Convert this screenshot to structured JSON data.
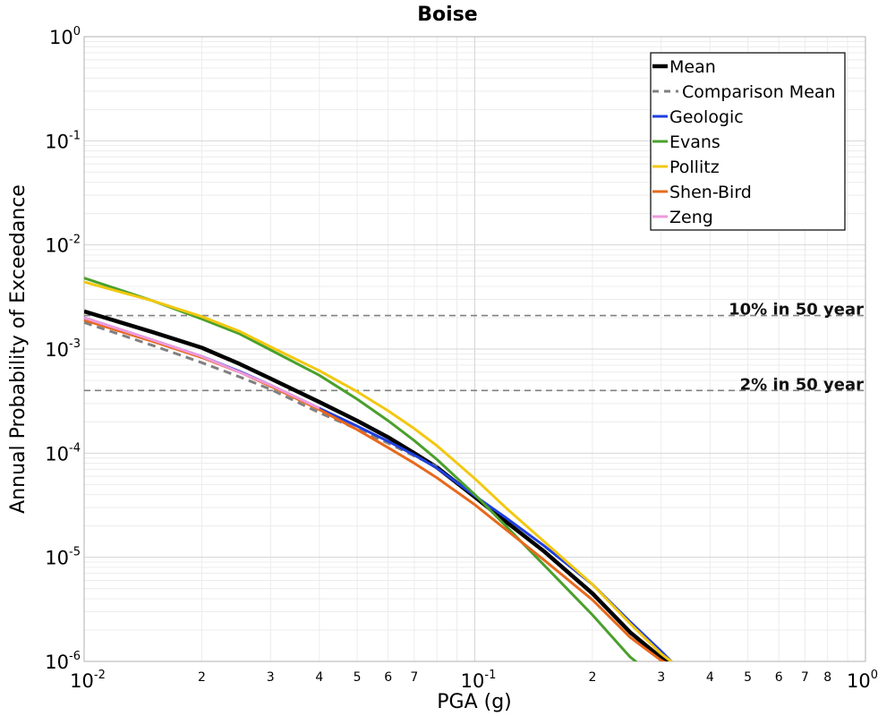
{
  "chart_data": {
    "type": "line",
    "title": "Boise",
    "xlabel": "PGA (g)",
    "ylabel": "Annual Probability of Exceedance",
    "x_scale": "log",
    "y_scale": "log",
    "xlim": [
      0.01,
      1
    ],
    "ylim": [
      1e-06,
      1
    ],
    "grid": true,
    "legend_position": "top-right",
    "x_major_ticks": [
      {
        "value": 0.01,
        "base": "10",
        "exp": "-2"
      },
      {
        "value": 0.1,
        "base": "10",
        "exp": "-1"
      },
      {
        "value": 1,
        "base": "10",
        "exp": "0"
      }
    ],
    "x_minor_ticks": [
      {
        "value": 0.02,
        "label": "2"
      },
      {
        "value": 0.03,
        "label": "3"
      },
      {
        "value": 0.04,
        "label": "4"
      },
      {
        "value": 0.05,
        "label": "5"
      },
      {
        "value": 0.06,
        "label": "6"
      },
      {
        "value": 0.07,
        "label": "7"
      },
      {
        "value": 0.2,
        "label": "2"
      },
      {
        "value": 0.3,
        "label": "3"
      },
      {
        "value": 0.4,
        "label": "4"
      },
      {
        "value": 0.5,
        "label": "5"
      },
      {
        "value": 0.6,
        "label": "6"
      },
      {
        "value": 0.7,
        "label": "7"
      },
      {
        "value": 0.8,
        "label": "8"
      }
    ],
    "y_major_ticks": [
      {
        "value": 1,
        "base": "10",
        "exp": "0"
      },
      {
        "value": 0.1,
        "base": "10",
        "exp": "-1"
      },
      {
        "value": 0.01,
        "base": "10",
        "exp": "-2"
      },
      {
        "value": 0.001,
        "base": "10",
        "exp": "-3"
      },
      {
        "value": 0.0001,
        "base": "10",
        "exp": "-4"
      },
      {
        "value": 1e-05,
        "base": "10",
        "exp": "-5"
      },
      {
        "value": 1e-06,
        "base": "10",
        "exp": "-6"
      }
    ],
    "reference_lines": [
      {
        "label": "10% in 50 year",
        "y": 0.0021,
        "color": "#808080"
      },
      {
        "label": "2% in 50 year",
        "y": 0.0004,
        "color": "#808080"
      }
    ],
    "series": [
      {
        "name": "Mean",
        "color": "#000000",
        "dash": "solid",
        "width": 4.5,
        "x": [
          0.01,
          0.015,
          0.02,
          0.025,
          0.03,
          0.04,
          0.05,
          0.06,
          0.07,
          0.08,
          0.1,
          0.12,
          0.15,
          0.2,
          0.25,
          0.3,
          0.32
        ],
        "y": [
          0.0023,
          0.00145,
          0.00103,
          0.00072,
          0.00052,
          0.00031,
          0.000205,
          0.000142,
          0.0001,
          7.3e-05,
          3.8e-05,
          2.2e-05,
          1.15e-05,
          4.5e-06,
          1.9e-06,
          1.08e-06,
          9.5e-07
        ]
      },
      {
        "name": "Comparison Mean",
        "color": "#808080",
        "dash": "dashed",
        "width": 3,
        "x": [
          0.01,
          0.015,
          0.02,
          0.025,
          0.03,
          0.04,
          0.05,
          0.06,
          0.07,
          0.08
        ],
        "y": [
          0.0018,
          0.00108,
          0.00074,
          0.00054,
          0.00041,
          0.000245,
          0.00017,
          0.000125,
          9.4e-05,
          7.4e-05
        ]
      },
      {
        "name": "Geologic",
        "color": "#1f3fdf",
        "dash": "solid",
        "width": 3,
        "x": [
          0.01,
          0.015,
          0.02,
          0.025,
          0.03,
          0.04,
          0.05,
          0.06,
          0.07,
          0.08,
          0.1,
          0.12,
          0.15,
          0.2,
          0.25,
          0.3,
          0.32
        ],
        "y": [
          0.002,
          0.00122,
          0.00085,
          0.00061,
          0.00045,
          0.00027,
          0.000182,
          0.00013,
          9.6e-05,
          7.2e-05,
          3.9e-05,
          2.4e-05,
          1.3e-05,
          5.5e-06,
          2.4e-06,
          1.25e-06,
          9.8e-07
        ]
      },
      {
        "name": "Evans",
        "color": "#4aa02c",
        "dash": "solid",
        "width": 3,
        "x": [
          0.01,
          0.015,
          0.02,
          0.025,
          0.03,
          0.04,
          0.05,
          0.06,
          0.07,
          0.08,
          0.1,
          0.12,
          0.15,
          0.2,
          0.25,
          0.26
        ],
        "y": [
          0.0048,
          0.0029,
          0.00195,
          0.0014,
          0.00098,
          0.00056,
          0.00033,
          0.000205,
          0.000132,
          8.7e-05,
          4e-05,
          2e-05,
          8.5e-06,
          2.8e-06,
          1.1e-06,
          9.8e-07
        ]
      },
      {
        "name": "Pollitz",
        "color": "#f2c811",
        "dash": "solid",
        "width": 3,
        "x": [
          0.01,
          0.015,
          0.02,
          0.025,
          0.03,
          0.04,
          0.05,
          0.06,
          0.07,
          0.08,
          0.1,
          0.12,
          0.15,
          0.2,
          0.25,
          0.3,
          0.32
        ],
        "y": [
          0.0044,
          0.0029,
          0.00205,
          0.00148,
          0.00105,
          0.00062,
          0.00039,
          0.000255,
          0.000172,
          0.000118,
          5.7e-05,
          3e-05,
          1.43e-05,
          5.5e-06,
          2.3e-06,
          1.18e-06,
          9.8e-07
        ]
      },
      {
        "name": "Shen-Bird",
        "color": "#e8691c",
        "dash": "solid",
        "width": 3,
        "x": [
          0.01,
          0.015,
          0.02,
          0.025,
          0.03,
          0.04,
          0.05,
          0.06,
          0.07,
          0.08,
          0.1,
          0.12,
          0.15,
          0.2,
          0.25,
          0.3,
          0.31
        ],
        "y": [
          0.0019,
          0.00118,
          0.00083,
          0.0006,
          0.00044,
          0.000262,
          0.000168,
          0.000113,
          8e-05,
          5.8e-05,
          3.2e-05,
          1.85e-05,
          9.5e-06,
          3.9e-06,
          1.7e-06,
          1.02e-06,
          9.6e-07
        ]
      },
      {
        "name": "Zeng",
        "color": "#ee99dd",
        "dash": "solid",
        "width": 3,
        "x": [
          0.01,
          0.015,
          0.02,
          0.03,
          0.04
        ],
        "y": [
          0.002,
          0.00122,
          0.00085,
          0.00045,
          0.00027
        ]
      }
    ]
  }
}
